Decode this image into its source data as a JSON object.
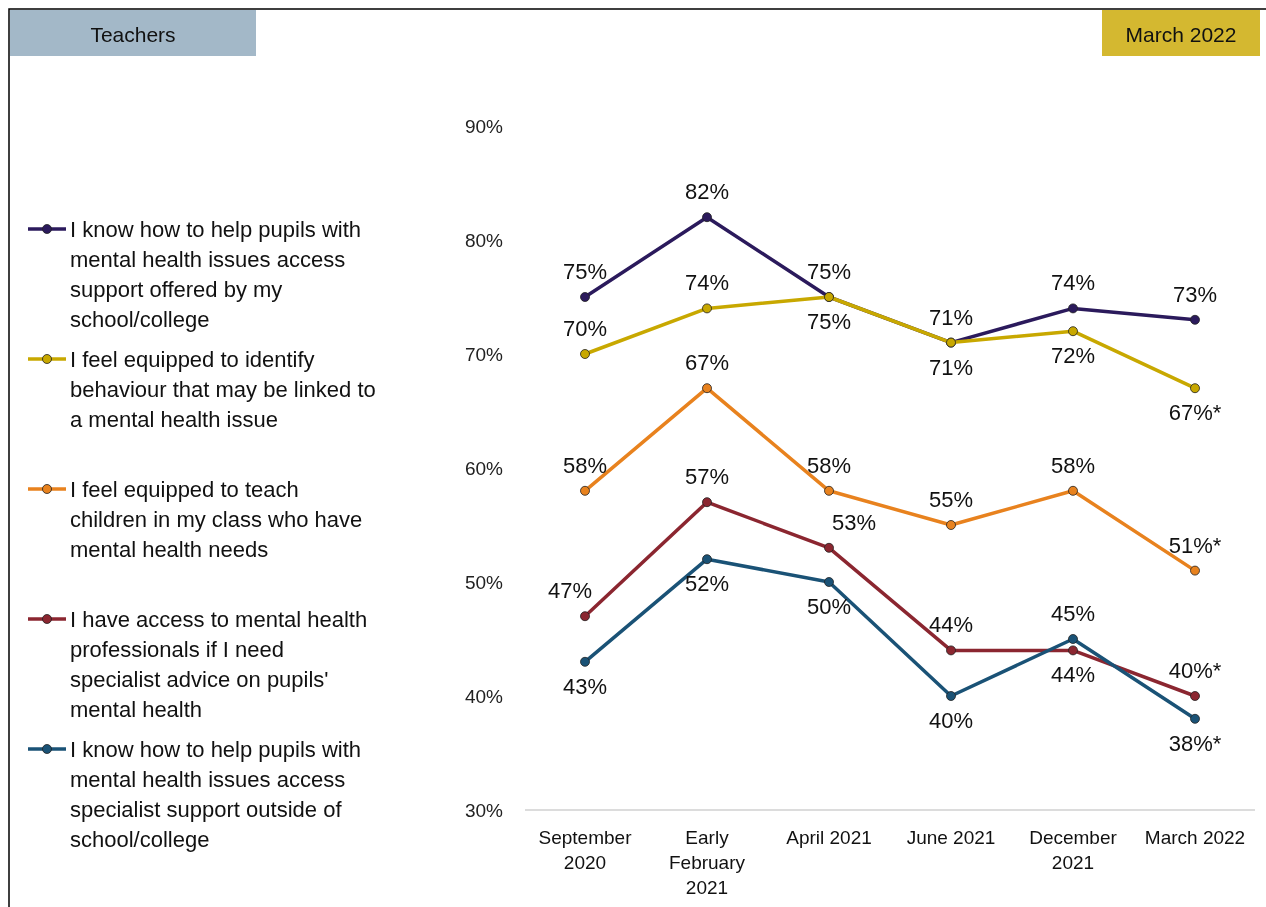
{
  "chart_data": {
    "type": "line",
    "title": "Teachers",
    "subtitle": "March 2022",
    "categories": [
      "September 2020",
      "Early February 2021",
      "April 2021",
      "June 2021",
      "December 2021",
      "March 2022"
    ],
    "series": [
      {
        "name": "I know how to help pupils with mental health issues access support offered by my school/college",
        "color": "#2b1a5c",
        "values": [
          75,
          82,
          75,
          71,
          74,
          73
        ],
        "value_labels": [
          "75%",
          "82%",
          "75%",
          "71%",
          "74%",
          "73%"
        ]
      },
      {
        "name": "I feel equipped to identify behaviour that may be linked to a mental health issue",
        "color": "#c8a800",
        "values": [
          70,
          74,
          75,
          71,
          72,
          67
        ],
        "value_labels": [
          "70%",
          "74%",
          "75%",
          "71%",
          "72%",
          "67%*"
        ]
      },
      {
        "name": "I feel equipped to teach children in my class who have mental health needs",
        "color": "#e8821e",
        "values": [
          58,
          67,
          58,
          55,
          58,
          51
        ],
        "value_labels": [
          "58%",
          "67%",
          "58%",
          "55%",
          "58%",
          "51%*"
        ]
      },
      {
        "name": "I have access to mental health professionals if I need specialist advice on pupils' mental health",
        "color": "#8b2630",
        "values": [
          47,
          57,
          53,
          44,
          44,
          40
        ],
        "value_labels": [
          "47%",
          "57%",
          "53%",
          "44%",
          "44%",
          "40%*"
        ]
      },
      {
        "name": "I know how to help pupils with mental health issues access specialist support outside of school/college",
        "color": "#1a5276",
        "values": [
          43,
          52,
          50,
          40,
          45,
          38
        ],
        "value_labels": [
          "43%",
          "52%",
          "50%",
          "40%",
          "45%",
          "38%*"
        ]
      }
    ],
    "ylim": [
      30,
      90
    ],
    "yticks": [
      {
        "value": 30,
        "label": "30%"
      },
      {
        "value": 40,
        "label": "40%"
      },
      {
        "value": 50,
        "label": "50%"
      },
      {
        "value": 60,
        "label": "60%"
      },
      {
        "value": 70,
        "label": "70%"
      },
      {
        "value": 80,
        "label": "80%"
      },
      {
        "value": 90,
        "label": "90%"
      }
    ],
    "grid": false,
    "legend": "left",
    "marker": "circle",
    "line_style": "solid"
  }
}
